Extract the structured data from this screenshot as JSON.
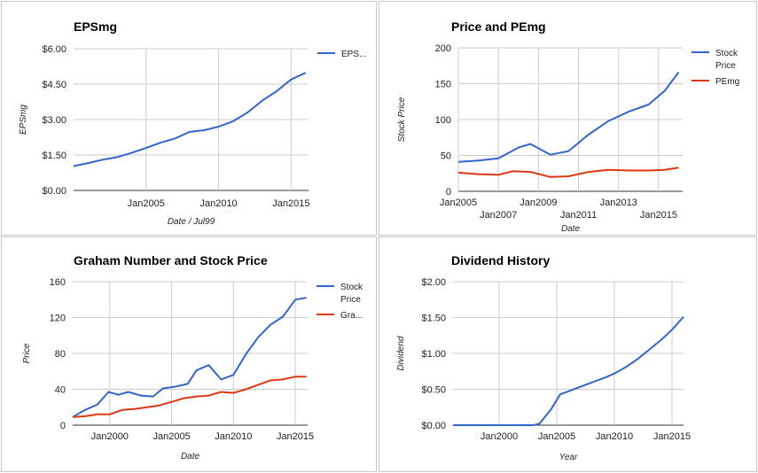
{
  "colors": {
    "blue": "#3366cc",
    "red": "#dc3912",
    "grid": "#cccccc"
  },
  "charts": [
    {
      "id": "p1",
      "title": "EPSmg",
      "xlabel": "Date / Jul99",
      "ylabel": "EPSmg",
      "legend": [
        {
          "label": "EPS...",
          "color": "#3366cc"
        }
      ]
    },
    {
      "id": "p2",
      "title": "Price and PEmg",
      "xlabel": "Date",
      "ylabel": "Stock Price",
      "legend": [
        {
          "label": [
            "Stock",
            "Price"
          ],
          "color": "#3366cc"
        },
        {
          "label": "PEmg",
          "color": "#dc3912"
        }
      ]
    },
    {
      "id": "p3",
      "title": "Graham Number and Stock Price",
      "xlabel": "Date",
      "ylabel": "Price",
      "legend": [
        {
          "label": [
            "Stock",
            "Price"
          ],
          "color": "#3366cc"
        },
        {
          "label": "Gra...",
          "color": "#dc3912"
        }
      ]
    },
    {
      "id": "p4",
      "title": "Dividend History",
      "xlabel": "Year",
      "ylabel": "Dividend",
      "legend": []
    }
  ],
  "chart_data": [
    {
      "type": "line",
      "title": "EPSmg",
      "xlabel": "Date / Jul99",
      "ylabel": "EPSmg",
      "ylim": [
        0,
        6
      ],
      "xlim": [
        2000,
        2016.2
      ],
      "y_ticks": [
        {
          "v": 0,
          "label": "$0.00"
        },
        {
          "v": 1.5,
          "label": "$1.50"
        },
        {
          "v": 3,
          "label": "$3.00"
        },
        {
          "v": 4.5,
          "label": "$4.50"
        },
        {
          "v": 6,
          "label": "$6.00"
        }
      ],
      "x_ticks": [
        {
          "v": 2005,
          "label": "Jan2005"
        },
        {
          "v": 2010,
          "label": "Jan2010"
        },
        {
          "v": 2015,
          "label": "Jan2015"
        }
      ],
      "x_grid": [
        2005,
        2010,
        2015
      ],
      "series": [
        {
          "name": "EPS...",
          "color": "#3366cc",
          "x": [
            2000,
            2001,
            2002,
            2003,
            2004,
            2005,
            2006,
            2007,
            2008,
            2009,
            2010,
            2011,
            2012,
            2013,
            2014,
            2015,
            2016
          ],
          "values": [
            1.03,
            1.16,
            1.3,
            1.41,
            1.59,
            1.8,
            2.02,
            2.2,
            2.48,
            2.55,
            2.7,
            2.93,
            3.3,
            3.8,
            4.2,
            4.7,
            4.98
          ]
        }
      ]
    },
    {
      "type": "line",
      "title": "Price and PEmg",
      "xlabel": "Date",
      "ylabel": "Stock Price",
      "ylim": [
        0,
        200
      ],
      "xlim": [
        2005,
        2016.2
      ],
      "y_ticks": [
        {
          "v": 0,
          "label": "0"
        },
        {
          "v": 50,
          "label": "50"
        },
        {
          "v": 100,
          "label": "100"
        },
        {
          "v": 150,
          "label": "150"
        },
        {
          "v": 200,
          "label": "200"
        }
      ],
      "x_ticks": [
        {
          "v": 2005,
          "label": "Jan2005",
          "row": 0
        },
        {
          "v": 2007,
          "label": "Jan2007",
          "row": 1
        },
        {
          "v": 2009,
          "label": "Jan2009",
          "row": 0
        },
        {
          "v": 2011,
          "label": "Jan2011",
          "row": 1
        },
        {
          "v": 2013,
          "label": "Jan2013",
          "row": 0
        },
        {
          "v": 2015,
          "label": "Jan2015",
          "row": 1
        }
      ],
      "x_grid": [
        2005,
        2007,
        2009,
        2011,
        2013,
        2015
      ],
      "series": [
        {
          "name": "Stock Price",
          "color": "#3366cc",
          "x": [
            2005,
            2006,
            2007,
            2008,
            2008.6,
            2009.6,
            2010.5,
            2011.5,
            2012.5,
            2013.5,
            2014.5,
            2015.3,
            2016.0
          ],
          "values": [
            41,
            43,
            46,
            61,
            66,
            51,
            56,
            79,
            98,
            111,
            121,
            140,
            166
          ]
        },
        {
          "name": "PEmg",
          "color": "#dc3912",
          "x": [
            2005,
            2006,
            2007,
            2007.7,
            2008.6,
            2009.6,
            2010.5,
            2011.5,
            2012.5,
            2013.5,
            2014.5,
            2015.3,
            2016.0
          ],
          "values": [
            26,
            24,
            23,
            28,
            27,
            20,
            21,
            27,
            30,
            29,
            29,
            30,
            33
          ]
        }
      ]
    },
    {
      "type": "line",
      "title": "Graham Number and Stock Price",
      "xlabel": "Date",
      "ylabel": "Price",
      "ylim": [
        0,
        160
      ],
      "xlim": [
        1997,
        2016
      ],
      "y_ticks": [
        {
          "v": 0,
          "label": "0"
        },
        {
          "v": 40,
          "label": "40"
        },
        {
          "v": 80,
          "label": "80"
        },
        {
          "v": 120,
          "label": "120"
        },
        {
          "v": 160,
          "label": "160"
        }
      ],
      "x_ticks": [
        {
          "v": 2000,
          "label": "Jan2000"
        },
        {
          "v": 2005,
          "label": "Jan2005"
        },
        {
          "v": 2010,
          "label": "Jan2010"
        },
        {
          "v": 2015,
          "label": "Jan2015"
        }
      ],
      "x_grid": [
        2000,
        2005,
        2010,
        2015
      ],
      "series": [
        {
          "name": "Stock Price",
          "color": "#3366cc",
          "x": [
            1997,
            1998,
            1999,
            1999.9,
            2000.7,
            2001.5,
            2002.5,
            2003.5,
            2004.3,
            2005.3,
            2006.3,
            2007,
            2008,
            2009,
            2010,
            2011,
            2012,
            2013,
            2014,
            2015,
            2015.9
          ],
          "values": [
            9,
            17,
            23,
            37,
            34,
            37,
            33,
            32,
            41,
            43,
            46,
            61,
            67,
            51,
            56,
            79,
            98,
            112,
            121,
            140,
            142
          ]
        },
        {
          "name": "Gra...",
          "color": "#dc3912",
          "x": [
            1997,
            1998,
            1999,
            2000,
            2001,
            2002,
            2003,
            2004,
            2005,
            2006,
            2007,
            2008,
            2009,
            2010,
            2011,
            2012,
            2013,
            2014,
            2015,
            2015.9
          ],
          "values": [
            9,
            10,
            12,
            12,
            17,
            18,
            20,
            22,
            26,
            30,
            32,
            33,
            37,
            36,
            40,
            45,
            50,
            51,
            54,
            54
          ]
        }
      ]
    },
    {
      "type": "line",
      "title": "Dividend History",
      "xlabel": "Year",
      "ylabel": "Dividend",
      "ylim": [
        0,
        2
      ],
      "xlim": [
        1996,
        2016
      ],
      "y_ticks": [
        {
          "v": 0,
          "label": "$0.00"
        },
        {
          "v": 0.5,
          "label": "$0.50"
        },
        {
          "v": 1,
          "label": "$1.00"
        },
        {
          "v": 1.5,
          "label": "$1.50"
        },
        {
          "v": 2,
          "label": "$2.00"
        }
      ],
      "x_ticks": [
        {
          "v": 2000,
          "label": "Jan2000"
        },
        {
          "v": 2005,
          "label": "Jan2005"
        },
        {
          "v": 2010,
          "label": "Jan2010"
        },
        {
          "v": 2015,
          "label": "Jan2015"
        }
      ],
      "x_grid": [
        2000,
        2005,
        2010,
        2015
      ],
      "series": [
        {
          "name": "Dividend",
          "color": "#3366cc",
          "x": [
            1996,
            1997,
            1998,
            1999,
            2000,
            2001,
            2002,
            2003,
            2003.5,
            2004.5,
            2005.3,
            2006.3,
            2007.3,
            2008.3,
            2009.3,
            2010,
            2011,
            2012,
            2013,
            2014,
            2015,
            2016
          ],
          "values": [
            0,
            0,
            0,
            0,
            0,
            0,
            0,
            0,
            0.02,
            0.22,
            0.43,
            0.49,
            0.55,
            0.61,
            0.67,
            0.72,
            0.81,
            0.92,
            1.05,
            1.18,
            1.33,
            1.51
          ]
        }
      ]
    }
  ]
}
